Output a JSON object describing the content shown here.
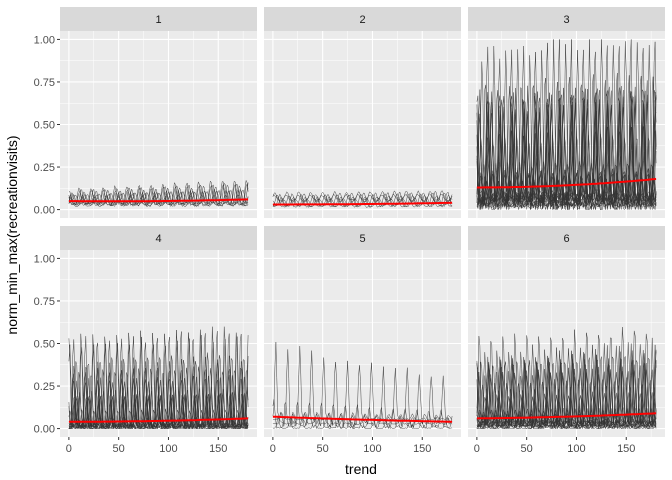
{
  "chart_data": {
    "type": "line",
    "facet_layout": "2x3",
    "xlabel": "trend",
    "ylabel": "norm_min_max(recreationvisits)",
    "xlim": [
      0,
      180
    ],
    "ylim": [
      0,
      1
    ],
    "x_ticks": [
      0,
      50,
      100,
      150
    ],
    "y_ticks": [
      0,
      0.25,
      0.5,
      0.75,
      1.0
    ],
    "x_tick_labels": [
      "0",
      "50",
      "100",
      "150"
    ],
    "y_tick_labels": [
      "0.00",
      "0.25",
      "0.50",
      "0.75",
      "1.00"
    ],
    "grid": true,
    "colors": {
      "panel_bg": "#ebebeb",
      "strip_bg": "#d9d9d9",
      "grid": "#ffffff",
      "series": "#333333",
      "trend": "#ff0000"
    },
    "facets": [
      {
        "label": "1",
        "n_series": 8,
        "base": [
          0.02,
          0.045
        ],
        "peak": [
          0.07,
          0.14
        ],
        "peak_growth": 0.6,
        "spiky": 0.4,
        "trend_start": 0.05,
        "trend_end": 0.06,
        "trend_mid": 0.045
      },
      {
        "label": "2",
        "n_series": 6,
        "base": [
          0.01,
          0.07
        ],
        "peak": [
          0.06,
          0.11
        ],
        "peak_growth": 0.25,
        "spiky": 0.2,
        "trend_start": 0.03,
        "trend_end": 0.04,
        "trend_mid": 0.03
      },
      {
        "label": "3",
        "n_series": 22,
        "base": [
          0.02,
          0.08
        ],
        "peak": [
          0.15,
          0.95
        ],
        "peak_growth": 0.1,
        "spiky": 0.8,
        "trend_start": 0.13,
        "trend_end": 0.18,
        "trend_mid": 0.13
      },
      {
        "label": "4",
        "n_series": 18,
        "base": [
          0.0,
          0.03
        ],
        "peak": [
          0.05,
          0.62
        ],
        "peak_growth": 0.1,
        "spiky": 0.9,
        "trend_start": 0.04,
        "trend_end": 0.06,
        "trend_mid": 0.04
      },
      {
        "label": "5",
        "n_series": 5,
        "base": [
          0.0,
          0.06
        ],
        "peak": [
          0.05,
          0.6
        ],
        "peak_growth": -0.45,
        "spiky": 1.0,
        "trend_start": 0.07,
        "trend_end": 0.04,
        "trend_mid": 0.05
      },
      {
        "label": "6",
        "n_series": 20,
        "base": [
          0.0,
          0.04
        ],
        "peak": [
          0.05,
          0.55
        ],
        "peak_growth": 0.15,
        "spiky": 0.85,
        "trend_start": 0.06,
        "trend_end": 0.09,
        "trend_mid": 0.065
      }
    ]
  }
}
